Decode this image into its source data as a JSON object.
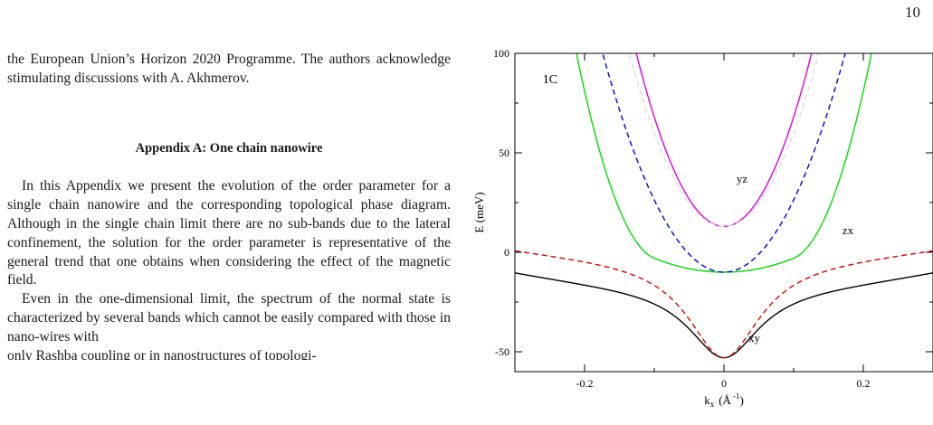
{
  "page_number": "10",
  "text": {
    "acknowledgement": "the European Union’s Horizon 2020 Programme. The authors acknowledge stimulating discussions with A. Akhmerov.",
    "section_title": "Appendix A: One chain nanowire",
    "paragraph_1": "In this Appendix we present the evolution of the order parameter for a single chain nanowire and the corresponding topological phase diagram. Although in the single chain limit there are no sub-bands due to the lateral confinement, the solution for the order parameter is representative of the general trend that one obtains when considering the effect of the magnetic field.",
    "paragraph_2": "Even in the one-dimensional limit, the spectrum of the normal state is characterized by several bands which cannot be easily compared with those in nano-wires with",
    "paragraph_2_cut": "only Rashba coupling or in nanostructures of topologi-"
  },
  "chart_data": {
    "type": "line",
    "panel_label": "1C",
    "xlabel": "k_x (Å^-1)",
    "xlabel_parts": {
      "main": "k",
      "sub": "x",
      "paren": "(Å",
      "sup": "-1",
      "close": ")"
    },
    "ylabel": "E (meV)",
    "xlim": [
      -0.3,
      0.3
    ],
    "ylim": [
      -60,
      100
    ],
    "x_ticks": [
      -0.2,
      0,
      0.2
    ],
    "y_ticks": [
      -50,
      0,
      50,
      100
    ],
    "x_tick_labels": [
      "-0.2",
      "0",
      "0.2"
    ],
    "y_tick_labels": [
      "-50",
      "0",
      "50",
      "100"
    ],
    "grid": false,
    "legend": "none",
    "series": [
      {
        "label": "xy",
        "color": "#000000",
        "style": "solid",
        "band": "xy_solid"
      },
      {
        "label": "",
        "color": "#dd0000",
        "style": "dashed",
        "band": "xy_dashed"
      },
      {
        "label": "zx",
        "color": "#00dd00",
        "style": "solid",
        "band": "zx_solid"
      },
      {
        "label": "",
        "color": "#0000dd",
        "style": "dashed",
        "band": "zx_dashed"
      },
      {
        "label": "yz",
        "color": "#dd00dd",
        "style": "solid",
        "band": "yz_solid"
      },
      {
        "label": "",
        "color": "#dddddd",
        "style": "dashed",
        "band": "yz_dashed"
      }
    ],
    "curve_labels": [
      {
        "text": "yz",
        "x": 0.018,
        "y": 35
      },
      {
        "text": "zx",
        "x": 0.17,
        "y": 9
      },
      {
        "text": "xy",
        "x": 0.035,
        "y": -45
      }
    ]
  }
}
